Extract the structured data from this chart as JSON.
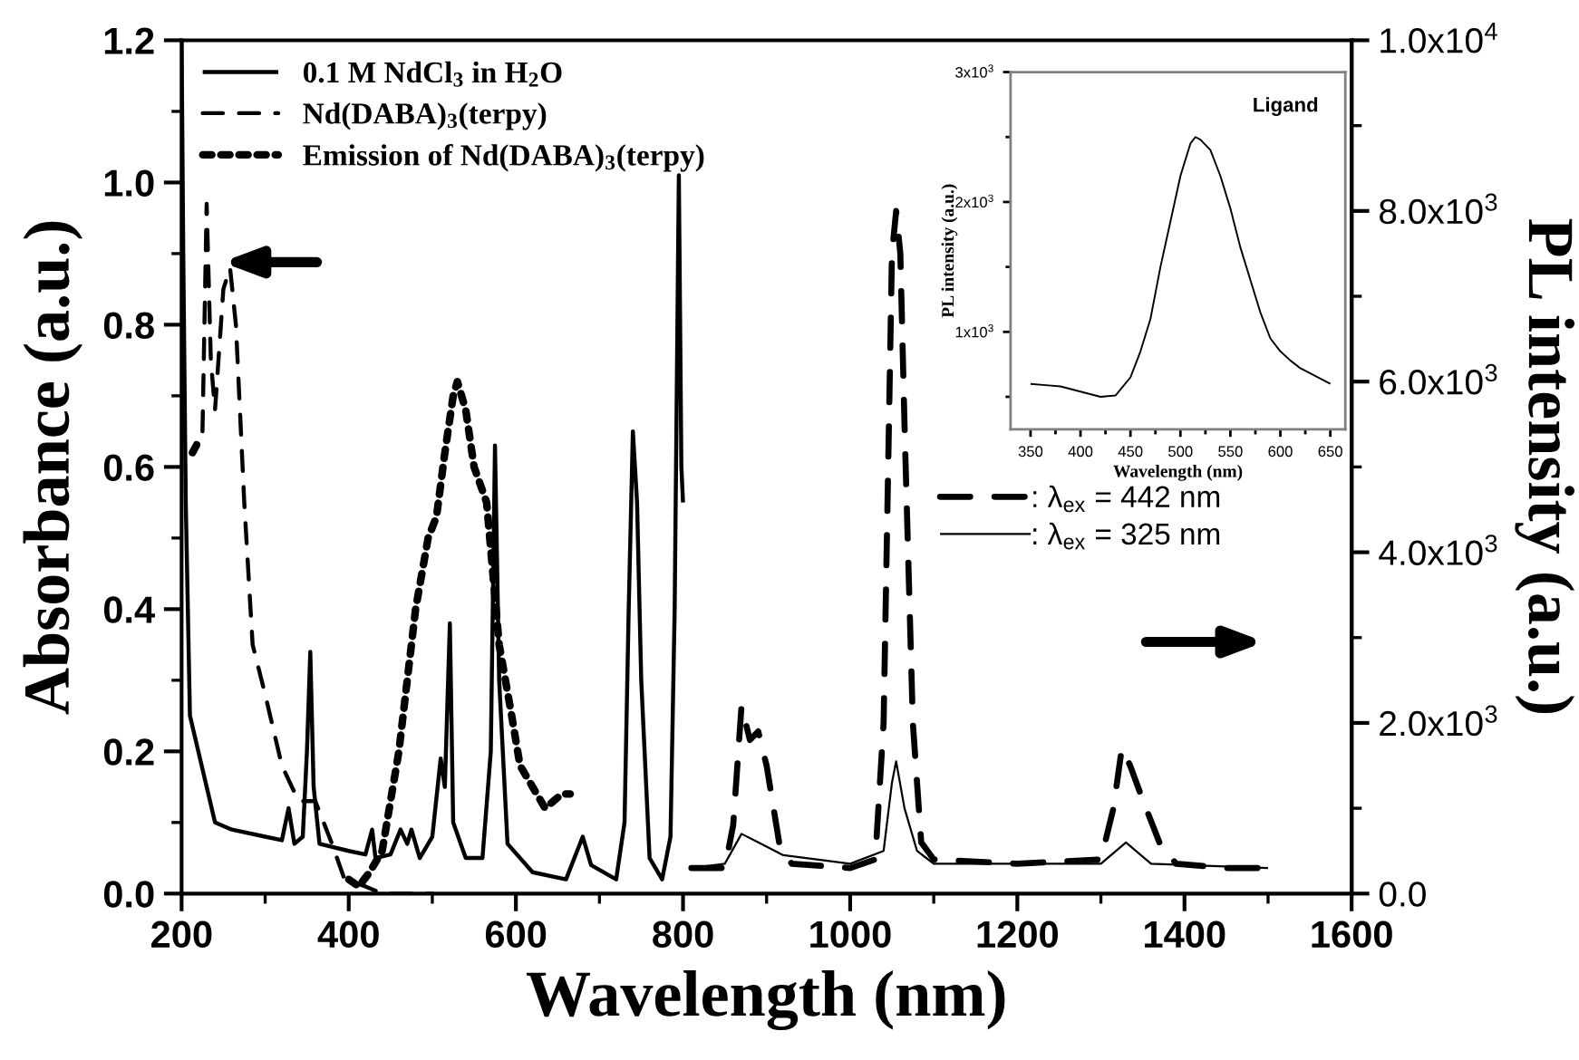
{
  "chart_data": [
    {
      "type": "line",
      "xlabel": "Wavelength (nm)",
      "ylabel": "Absorbance (a.u.)",
      "y2label": "PL intensity (a.u.)",
      "xlim": [
        200,
        1600
      ],
      "ylim": [
        0,
        1.2
      ],
      "y2lim": [
        0,
        10000
      ],
      "xticks": [
        200,
        {
          "value": 300,
          "label": null
        },
        400,
        {
          "value": 500,
          "label": null
        },
        600,
        {
          "value": 700,
          "label": null
        },
        800,
        {
          "value": 900,
          "label": null
        },
        1000,
        {
          "value": 1100,
          "label": null
        },
        1200,
        {
          "value": 1300,
          "label": null
        },
        1400,
        {
          "value": 1500,
          "label": null
        },
        1600
      ],
      "yticks": [
        {
          "value": 0,
          "label": "0.0"
        },
        {
          "value": 0.1,
          "label": null
        },
        {
          "value": 0.2,
          "label": "0.2"
        },
        {
          "value": 0.3,
          "label": null
        },
        {
          "value": 0.4,
          "label": "0.4"
        },
        {
          "value": 0.5,
          "label": null
        },
        {
          "value": 0.6,
          "label": "0.6"
        },
        {
          "value": 0.7,
          "label": null
        },
        {
          "value": 0.8,
          "label": "0.8"
        },
        {
          "value": 0.9,
          "label": null
        },
        {
          "value": 1.0,
          "label": "1.0"
        },
        {
          "value": 1.1,
          "label": null
        },
        {
          "value": 1.2,
          "label": "1.2"
        }
      ],
      "y2ticks": [
        {
          "value": 0,
          "label": "0.0"
        },
        {
          "value": 1000,
          "label": null
        },
        {
          "value": 2000,
          "label": "2.0x10$^{3}$"
        },
        {
          "value": 3000,
          "label": null
        },
        {
          "value": 4000,
          "label": "4.0x10$^{3}$"
        },
        {
          "value": 5000,
          "label": null
        },
        {
          "value": 6000,
          "label": "6.0x10$^{3}$"
        },
        {
          "value": 7000,
          "label": null
        },
        {
          "value": 8000,
          "label": "8.0x10$^{3}$"
        },
        {
          "value": 9000,
          "label": null
        },
        {
          "value": 10000,
          "label": "1.0x10$^{4}$"
        }
      ],
      "grid": false,
      "legend": "top left",
      "series": [
        {
          "name": "0.1 M NdCl$_{3}$ in H$_{2}$O",
          "color": "#000000",
          "line_style": "solid",
          "x": [
            200,
            202,
            205,
            210,
            220,
            230,
            240,
            260,
            300,
            320,
            328,
            335,
            345,
            350,
            354,
            358,
            365,
            400,
            420,
            428,
            432,
            450,
            462,
            470,
            475,
            485,
            500,
            510,
            515,
            521,
            525,
            540,
            560,
            570,
            575,
            580,
            590,
            620,
            660,
            680,
            690,
            720,
            730,
            735,
            740,
            745,
            750,
            760,
            775,
            785,
            790,
            795,
            798,
            800
          ],
          "values": [
            1.2,
            0.9,
            0.55,
            0.25,
            0.2,
            0.15,
            0.1,
            0.09,
            0.08,
            0.075,
            0.12,
            0.07,
            0.08,
            0.2,
            0.34,
            0.15,
            0.07,
            0.06,
            0.055,
            0.09,
            0.05,
            0.055,
            0.09,
            0.07,
            0.09,
            0.05,
            0.08,
            0.19,
            0.15,
            0.38,
            0.1,
            0.05,
            0.05,
            0.2,
            0.63,
            0.3,
            0.07,
            0.03,
            0.02,
            0.08,
            0.04,
            0.02,
            0.1,
            0.4,
            0.65,
            0.55,
            0.3,
            0.05,
            0.02,
            0.08,
            0.4,
            1.01,
            0.6,
            0.55
          ]
        },
        {
          "name": "Nd(DABA)$_{3}$(terpy)",
          "color": "#000000",
          "line_style": "dashed",
          "x": [
            225,
            230,
            235,
            240,
            250,
            258,
            265,
            275,
            285,
            300,
            320,
            340,
            360,
            380,
            395,
            420,
            440,
            500
          ],
          "values": [
            0.65,
            0.97,
            0.75,
            0.68,
            0.85,
            0.88,
            0.8,
            0.55,
            0.35,
            0.28,
            0.18,
            0.13,
            0.13,
            0.07,
            0.02,
            0.01,
            0.0,
            0.0
          ]
        },
        {
          "name": "Emission of Nd(DABA)$_{3}$(terpy)",
          "color": "#000000",
          "line_style": "dotted",
          "x": [
            213,
            222,
            300,
            400,
            412,
            425,
            440,
            460,
            480,
            495,
            505,
            515,
            525,
            530,
            540,
            550,
            565,
            580,
            595,
            605,
            620,
            635,
            645,
            655,
            665
          ],
          "values": [
            0.62,
            0.64,
            null,
            0.02,
            0.01,
            0.03,
            0.06,
            0.2,
            0.4,
            0.5,
            0.53,
            0.62,
            0.7,
            0.72,
            0.68,
            0.6,
            0.55,
            0.35,
            0.25,
            0.18,
            0.15,
            0.12,
            0.13,
            0.14,
            0.14
          ]
        },
        {
          "name": ": λ$_{ex}$ = 442 nm",
          "color": "#000000",
          "line_style": "dashed",
          "axis": "y2",
          "x": [
            810,
            850,
            860,
            870,
            880,
            890,
            900,
            915,
            930,
            1000,
            1030,
            1040,
            1050,
            1055,
            1060,
            1065,
            1075,
            1085,
            1100,
            1200,
            1300,
            1315,
            1325,
            1335,
            1350,
            1370,
            1390,
            1450,
            1500
          ],
          "values": [
            300,
            300,
            800,
            2200,
            1800,
            1900,
            1500,
            600,
            350,
            300,
            400,
            2000,
            7500,
            8000,
            7500,
            5500,
            2000,
            600,
            400,
            350,
            400,
            1000,
            1700,
            1500,
            1100,
            600,
            350,
            300,
            300
          ]
        },
        {
          "name": ": λ$_{ex}$ = 325 nm",
          "color": "#000000",
          "line_style": "solid",
          "axis": "y2",
          "x": [
            810,
            850,
            870,
            890,
            920,
            1000,
            1040,
            1050,
            1055,
            1065,
            1080,
            1100,
            1300,
            1330,
            1360,
            1500
          ],
          "values": [
            300,
            350,
            700,
            600,
            450,
            350,
            500,
            1300,
            1550,
            1000,
            500,
            350,
            350,
            600,
            350,
            300
          ]
        }
      ]
    },
    {
      "type": "line",
      "xlabel": "Wavelength (nm)",
      "ylabel": "PL intensity (a.u.)",
      "annotations": [
        "Ligand"
      ],
      "xlim": [
        330,
        665
      ],
      "ylim": [
        250,
        3000
      ],
      "xticks": [
        350,
        {
          "value": 375,
          "label": null
        },
        400,
        {
          "value": 425,
          "label": null
        },
        450,
        {
          "value": 475,
          "label": null
        },
        500,
        {
          "value": 525,
          "label": null
        },
        550,
        {
          "value": 575,
          "label": null
        },
        600,
        {
          "value": 625,
          "label": null
        },
        650
      ],
      "yticks": [
        {
          "value": 500,
          "label": null
        },
        {
          "value": 1000,
          "label": "1x10$^{3}$"
        },
        {
          "value": 1500,
          "label": null
        },
        {
          "value": 2000,
          "label": "2x10$^{3}$"
        },
        {
          "value": 2500,
          "label": null
        },
        {
          "value": 3000,
          "label": "3x10$^{3}$"
        }
      ],
      "grid": false,
      "series": [
        {
          "color": "#000000",
          "line_style": "solid",
          "x": [
            350,
            365,
            380,
            400,
            420,
            435,
            450,
            460,
            470,
            480,
            490,
            500,
            510,
            515,
            520,
            530,
            540,
            550,
            560,
            570,
            580,
            590,
            600,
            610,
            620,
            630,
            640,
            650
          ],
          "values": [
            600,
            590,
            580,
            540,
            500,
            510,
            650,
            850,
            1100,
            1500,
            1850,
            2200,
            2450,
            2500,
            2480,
            2400,
            2200,
            1950,
            1650,
            1400,
            1150,
            950,
            850,
            780,
            720,
            680,
            640,
            600
          ]
        }
      ]
    }
  ]
}
